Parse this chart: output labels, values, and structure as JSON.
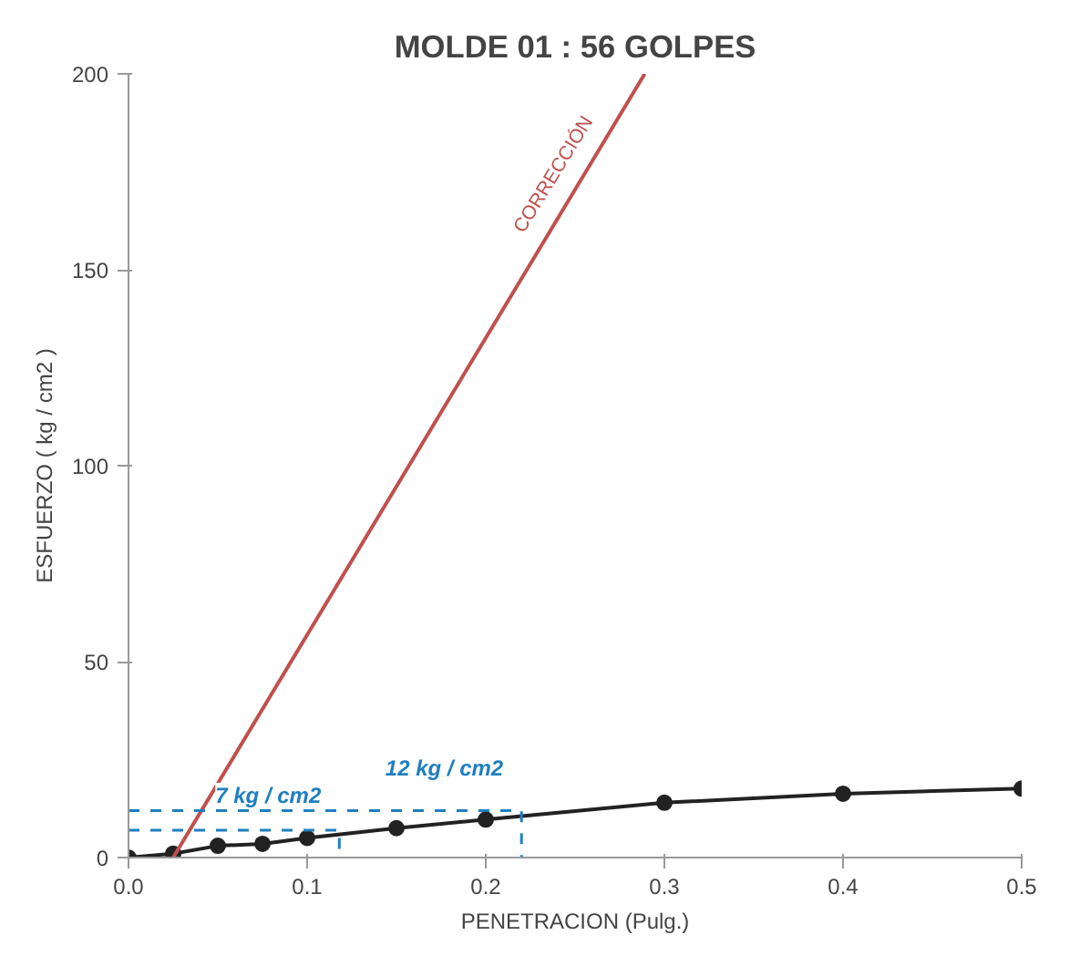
{
  "chart_data": {
    "type": "line",
    "title": "MOLDE 01 : 56 GOLPES",
    "xlabel": "PENETRACION (Pulg.)",
    "ylabel": "ESFUERZO ( kg / cm2 )",
    "x": [
      0,
      0.025,
      0.05,
      0.075,
      0.1,
      0.15,
      0.2,
      0.3,
      0.4,
      0.5
    ],
    "series": [
      {
        "color": "#222222",
        "values": [
          0,
          1,
          3,
          3.5,
          5,
          7.5,
          9.7,
          14,
          16.3,
          17.6
        ],
        "marker": "circle"
      },
      {
        "color": "#c0504d",
        "x": [
          0.025,
          0.289
        ],
        "values": [
          0,
          200
        ],
        "marker": "none"
      },
      {
        "color": "#1f7fc0",
        "x": [
          0,
          0.118,
          0.118
        ],
        "values": [
          7,
          7,
          0
        ],
        "marker": "none",
        "line_style": "dashed"
      },
      {
        "color": "#1f7fc0",
        "x": [
          0,
          0.22,
          0.22
        ],
        "values": [
          12,
          12,
          0
        ],
        "marker": "none",
        "line_style": "dashed"
      }
    ],
    "xlim": [
      0,
      0.5
    ],
    "ylim": [
      0,
      200
    ],
    "xticks": [
      {
        "value": 0,
        "label": "0.0"
      },
      0.1,
      0.2,
      0.3,
      0.4,
      0.5
    ],
    "yticks": [
      0,
      50,
      100,
      150,
      200
    ],
    "annotations": [
      "7 kg / cm2",
      "12 kg / cm2",
      "CORRECCIÓN"
    ],
    "grid": false,
    "line_style": "solid"
  }
}
